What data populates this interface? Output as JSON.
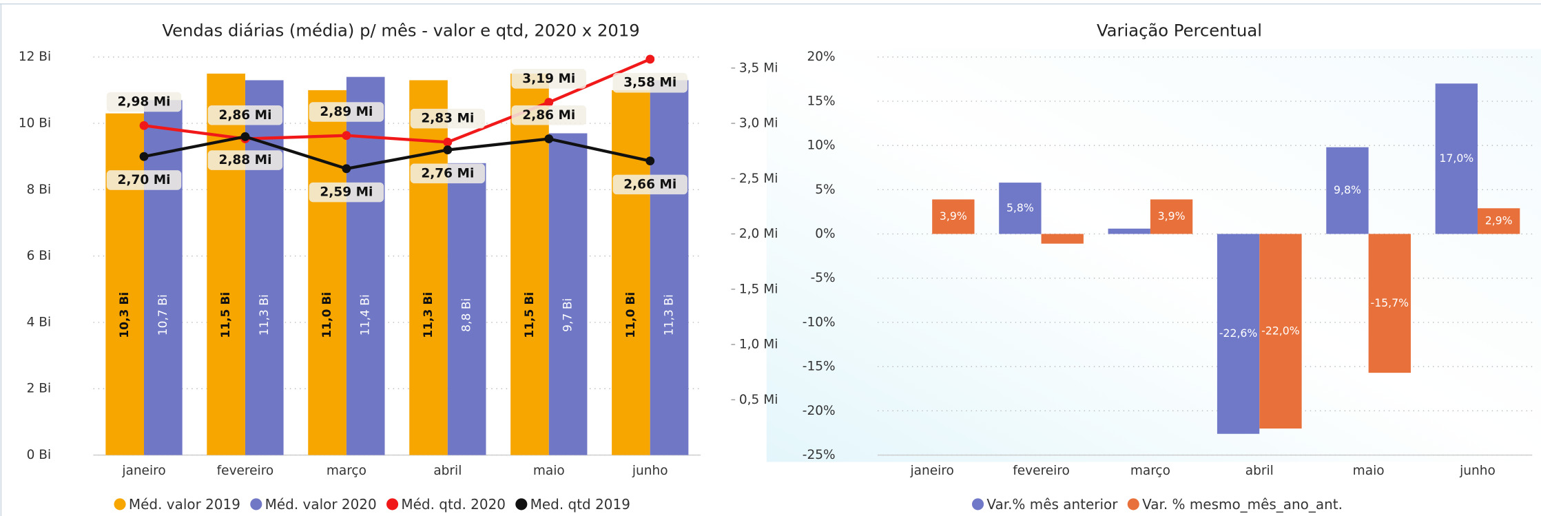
{
  "chart_data": [
    {
      "type": "combo",
      "title": "Vendas diárias (média) p/ mês - valor e qtd, 2020 x 2019",
      "categories": [
        "janeiro",
        "fevereiro",
        "março",
        "abril",
        "maio",
        "junho"
      ],
      "ylim": [
        0,
        12
      ],
      "yticks": [
        {
          "value": 0,
          "label": "0 Bi"
        },
        {
          "value": 2,
          "label": "2 Bi"
        },
        {
          "value": 4,
          "label": "4 Bi"
        },
        {
          "value": 6,
          "label": "6 Bi"
        },
        {
          "value": 8,
          "label": "8 Bi"
        },
        {
          "value": 10,
          "label": "10 Bi"
        },
        {
          "value": 12,
          "label": "12 Bi"
        }
      ],
      "y2lim": [
        0,
        3.6
      ],
      "y2ticks": [
        {
          "value": 0.5,
          "label": "0,5 Mi"
        },
        {
          "value": 1.0,
          "label": "1,0 Mi"
        },
        {
          "value": 1.5,
          "label": "1,5 Mi"
        },
        {
          "value": 2.0,
          "label": "2,0 Mi"
        },
        {
          "value": 2.5,
          "label": "2,5 Mi"
        },
        {
          "value": 3.0,
          "label": "3,0 Mi"
        },
        {
          "value": 3.5,
          "label": "3,5 Mi"
        }
      ],
      "grid": true,
      "series": [
        {
          "name": "Méd. valor 2019",
          "type": "bar",
          "color": "#f7a600",
          "values": [
            10.3,
            11.5,
            11.0,
            11.3,
            11.5,
            11.0
          ],
          "value_labels": [
            "10,3 Bi",
            "11,5 Bi",
            "11,0 Bi",
            "11,3 Bi",
            "11,5 Bi",
            "11,0 Bi"
          ]
        },
        {
          "name": "Méd. valor 2020",
          "type": "bar",
          "color": "#7078c6",
          "values": [
            10.7,
            11.3,
            11.4,
            8.8,
            9.7,
            11.3
          ],
          "value_labels": [
            "10,7 Bi",
            "11,3 Bi",
            "11,4 Bi",
            "8,8 Bi",
            "9,7 Bi",
            "11,3 Bi"
          ]
        },
        {
          "name": "Méd. qtd. 2020",
          "type": "line",
          "axis": "y2",
          "color": "#f01818",
          "values": [
            2.98,
            2.86,
            2.89,
            2.83,
            3.19,
            3.58
          ],
          "value_labels": [
            "2,98 Mi",
            "2,86 Mi",
            "2,89 Mi",
            "2,83 Mi",
            "3,19 Mi",
            "3,58 Mi"
          ]
        },
        {
          "name": "Med. qtd 2019",
          "type": "line",
          "axis": "y2",
          "color": "#111111",
          "values": [
            2.7,
            2.88,
            2.59,
            2.76,
            2.86,
            2.66
          ],
          "value_labels": [
            "2,70 Mi",
            "2,88 Mi",
            "2,59 Mi",
            "2,76 Mi",
            "2,86 Mi",
            "2,66 Mi"
          ]
        }
      ]
    },
    {
      "type": "bar",
      "title": "Variação Percentual",
      "categories": [
        "janeiro",
        "fevereiro",
        "março",
        "abril",
        "maio",
        "junho"
      ],
      "ylim": [
        -25,
        20
      ],
      "yticks": [
        {
          "value": -25,
          "label": "-25%"
        },
        {
          "value": -20,
          "label": "-20%"
        },
        {
          "value": -15,
          "label": "-15%"
        },
        {
          "value": -10,
          "label": "-10%"
        },
        {
          "value": -5,
          "label": "-5%"
        },
        {
          "value": 0,
          "label": "0%"
        },
        {
          "value": 5,
          "label": "5%"
        },
        {
          "value": 10,
          "label": "10%"
        },
        {
          "value": 15,
          "label": "15%"
        },
        {
          "value": 20,
          "label": "20%"
        }
      ],
      "grid": true,
      "series": [
        {
          "name": "Var.% mês anterior",
          "type": "bar",
          "color": "#7079c8",
          "values": [
            null,
            5.8,
            0.6,
            -22.6,
            9.8,
            17.0
          ],
          "value_labels": [
            null,
            "5,8%",
            null,
            "-22,6%",
            "9,8%",
            "17,0%"
          ]
        },
        {
          "name": "Var. % mesmo_mês_ano_ant.",
          "type": "bar",
          "color": "#e8703a",
          "values": [
            3.9,
            -1.1,
            3.9,
            -22.0,
            -15.7,
            2.9
          ],
          "value_labels": [
            "3,9%",
            null,
            "3,9%",
            "-22,0%",
            "-15,7%",
            "2,9%"
          ]
        }
      ]
    }
  ]
}
